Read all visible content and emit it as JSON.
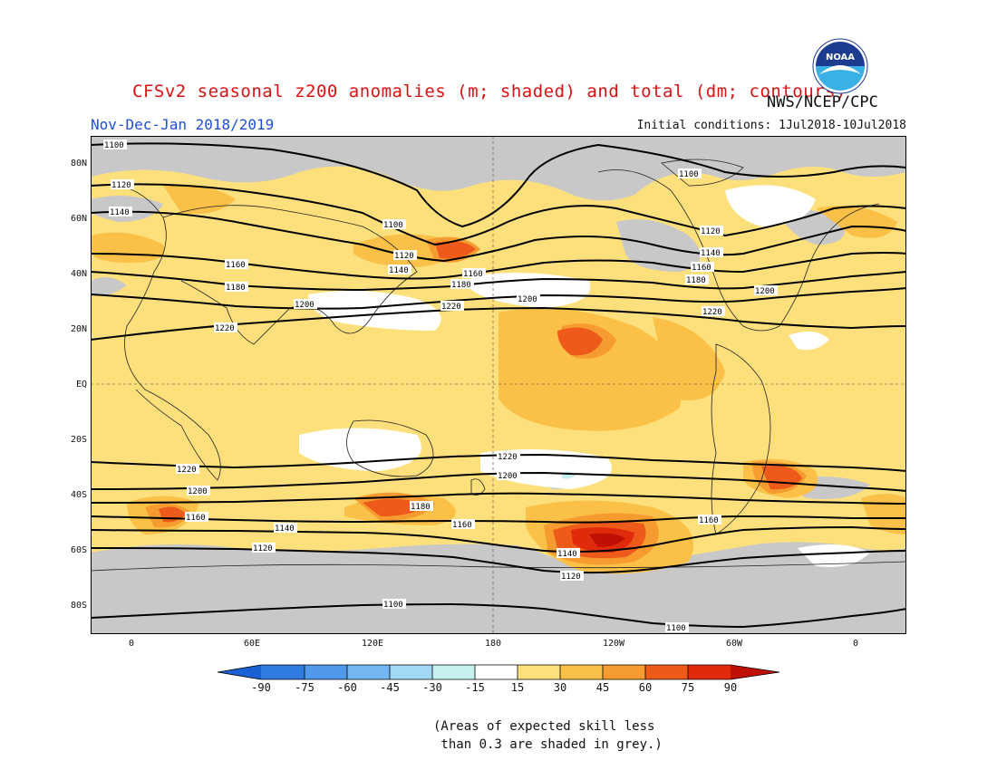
{
  "title": "CFSv2 seasonal z200 anomalies (m; shaded) and total (dm; contours)",
  "agency": "NWS/NCEP/CPC",
  "logo_text": "NOAA",
  "period": "Nov-Dec-Jan 2018/2019",
  "initial_conditions": "Initial conditions: 1Jul2018-10Jul2018",
  "lat_labels": [
    "80N",
    "60N",
    "40N",
    "20N",
    "EQ",
    "20S",
    "40S",
    "60S",
    "80S"
  ],
  "lon_labels": [
    "0",
    "60E",
    "120E",
    "180",
    "120W",
    "60W",
    "0"
  ],
  "colorbar": {
    "labels": [
      "-90",
      "-75",
      "-60",
      "-45",
      "-30",
      "-15",
      "15",
      "30",
      "45",
      "60",
      "75",
      "90"
    ],
    "colors": [
      "#1a62d4",
      "#2f7be0",
      "#4f98ea",
      "#74b6f1",
      "#a2d8f5",
      "#c5f0f0",
      "#ffffff",
      "#fde07b",
      "#fbc047",
      "#f59b30",
      "#ee5a19",
      "#e02a0c",
      "#c01006"
    ]
  },
  "colors": {
    "skill_grey": "#c8c8c8",
    "pale_yellow": "#fde07b",
    "orange_light": "#fbc047",
    "orange": "#f59b30",
    "orange_red": "#ee5a19",
    "red": "#e02a0c",
    "dark_red": "#c01006",
    "white": "#ffffff",
    "light_blue": "#c5f0f0",
    "period_blue": "#1d4fd8",
    "title_red": "#dd1111"
  },
  "contour_labels": {
    "c1100_a": "1100",
    "c1100_b": "1100",
    "c1100_c": "1100",
    "c1100_d": "1100",
    "c1100_e": "1100",
    "c1120_a": "1120",
    "c1120_b": "1120",
    "c1120_c": "1120",
    "c1120_d": "1120",
    "c1120_e": "1120",
    "c1140_a": "1140",
    "c1140_b": "1140",
    "c1140_c": "1140",
    "c1140_d": "1140",
    "c1140_e": "1140",
    "c1160_a": "1160",
    "c1160_b": "1160",
    "c1160_c": "1160",
    "c1160_d": "1160",
    "c1160_e": "1160",
    "c1160_f": "1160",
    "c1180_a": "1180",
    "c1180_b": "1180",
    "c1180_c": "1180",
    "c1180_d": "1180",
    "c1200_a": "1200",
    "c1200_b": "1200",
    "c1200_c": "1200",
    "c1200_d": "1200",
    "c1200_e": "1200",
    "c1220_a": "1220",
    "c1220_b": "1220",
    "c1220_c": "1220",
    "c1220_d": "1220",
    "c1220_e": "1220"
  },
  "note": "(Areas of expected skill less\n than 0.3 are shaded in grey.)"
}
